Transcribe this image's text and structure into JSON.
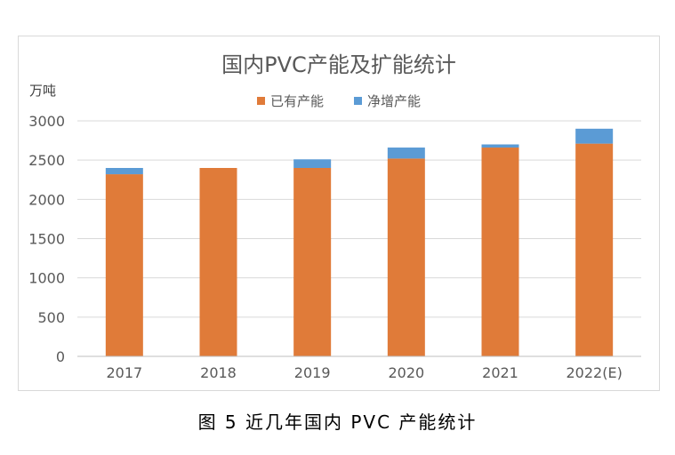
{
  "chart_data": {
    "type": "bar",
    "stacked": true,
    "title": "国内PVC产能及扩能统计",
    "ylabel": "万吨",
    "xlabel": "",
    "categories": [
      "2017",
      "2018",
      "2019",
      "2020",
      "2021",
      "2022(E)"
    ],
    "series": [
      {
        "name": "已有产能",
        "color": "#E07B39",
        "values": [
          2320,
          2400,
          2400,
          2520,
          2660,
          2710
        ]
      },
      {
        "name": "净增产能",
        "color": "#5B9BD5",
        "values": [
          80,
          0,
          110,
          140,
          40,
          190
        ]
      }
    ],
    "ylim": [
      0,
      3000
    ],
    "yticks": [
      0,
      500,
      1000,
      1500,
      2000,
      2500,
      3000
    ],
    "grid": true,
    "legend_position": "top"
  },
  "caption": "图 5  近几年国内 PVC 产能统计"
}
